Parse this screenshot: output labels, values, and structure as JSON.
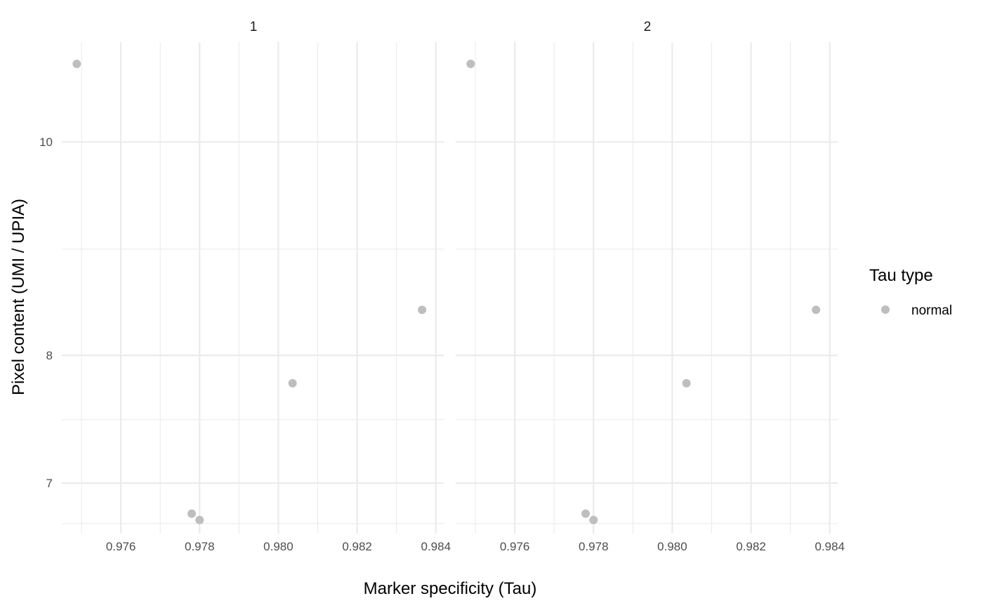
{
  "chart_data": {
    "type": "scatter",
    "facets": [
      "1",
      "2"
    ],
    "xlabel": "Marker specificity (Tau)",
    "ylabel": "Pixel content (UMI / UPIA)",
    "x_ticks": [
      "0.976",
      "0.978",
      "0.980",
      "0.982",
      "0.984"
    ],
    "x_tick_values": [
      0.976,
      0.978,
      0.98,
      0.982,
      0.984
    ],
    "x_minor_values": [
      0.975,
      0.977,
      0.979,
      0.981,
      0.983
    ],
    "xlim": [
      0.9745,
      0.9842
    ],
    "y_scale": "log",
    "y_ticks": [
      "7",
      "8",
      "10"
    ],
    "y_tick_values": [
      7,
      8,
      10
    ],
    "y_minor_values": [
      6.71,
      7.48,
      8.94
    ],
    "ylim": [
      6.64,
      11.1
    ],
    "grid": true,
    "point_color": "#bebebe",
    "legend": {
      "title": "Tau type",
      "placement": "right",
      "entries": [
        {
          "label": "normal",
          "color": "#bebebe"
        }
      ]
    },
    "series": [
      {
        "name": "normal",
        "points": [
          {
            "x": 0.97488,
            "y": 10.85
          },
          {
            "x": 0.9778,
            "y": 6.78
          },
          {
            "x": 0.978,
            "y": 6.735
          },
          {
            "x": 0.98036,
            "y": 7.77
          },
          {
            "x": 0.98365,
            "y": 8.39
          }
        ]
      }
    ]
  }
}
